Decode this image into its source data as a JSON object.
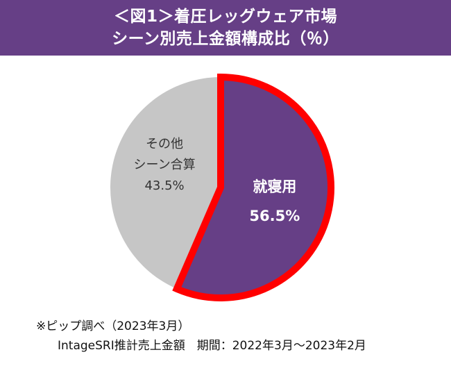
{
  "header": {
    "title_line1": "＜図1＞着圧レッグウェア市場",
    "title_line2": "シーン別売上金額構成比（％）"
  },
  "chart_data": {
    "type": "pie",
    "title": "＜図1＞着圧レッグウェア市場 シーン別売上金額構成比（％）",
    "unit": "%",
    "slices": [
      {
        "label": "就寝用",
        "value": 56.5,
        "value_label": "56.5%",
        "color": "#663f86",
        "highlight": true,
        "highlight_color": "#ff0000"
      },
      {
        "label_lines": [
          "その他",
          "シーン合算"
        ],
        "value": 43.5,
        "value_label": "43.5%",
        "color": "#c6c6c6",
        "highlight": false
      }
    ],
    "start_angle_deg": 0,
    "direction": "clockwise",
    "legend": "none"
  },
  "footnote": {
    "line1": "※ピップ調べ（2023年3月）",
    "line2": "IntageSRI推計売上金額　期間：2022年3月～2023年2月"
  }
}
